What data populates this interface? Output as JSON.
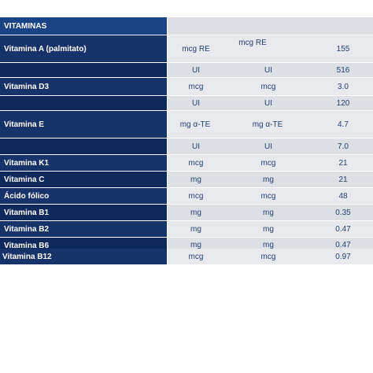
{
  "table": {
    "header": "VITAMINAS",
    "rows": [
      {
        "label": "Vitamina A (palmitato)",
        "c1": "mcg RE",
        "c2": "mcg RE",
        "c3": "155"
      },
      {
        "label": "",
        "c1": "UI",
        "c2": "UI",
        "c3": "516"
      },
      {
        "label": "Vitamina D3",
        "c1": "mcg",
        "c2": "mcg",
        "c3": "3.0"
      },
      {
        "label": "",
        "c1": "UI",
        "c2": "UI",
        "c3": "120"
      },
      {
        "label": "Vitamina E",
        "c1": "mg α-TE",
        "c2": "mg α-TE",
        "c3": "4.7"
      },
      {
        "label": "",
        "c1": "UI",
        "c2": "UI",
        "c3": "7.0"
      },
      {
        "label": "Vitamina K1",
        "c1": "mcg",
        "c2": "mcg",
        "c3": "21"
      },
      {
        "label": "Vitamina C",
        "c1": "mg",
        "c2": "mg",
        "c3": "21"
      },
      {
        "label": "Ácido fólico",
        "c1": "mcg",
        "c2": "mcg",
        "c3": "48"
      },
      {
        "label": "Vitamina B1",
        "c1": "mg",
        "c2": "mg",
        "c3": "0.35"
      },
      {
        "label": "Vitamina B2",
        "c1": "mg",
        "c2": "mg",
        "c3": "0.47"
      },
      {
        "label": "Vitamina B6",
        "c1": "mg",
        "c2": "mg",
        "c3": "0.47"
      },
      {
        "label": "Vitamina B12",
        "c1": "mcg",
        "c2": "mcg",
        "c3": "0.97"
      }
    ]
  },
  "colors": {
    "label_bg": "#17346a",
    "header_bg": "#1a4486",
    "cell_bg": "#e7e9ed",
    "cell_text": "#27406e"
  }
}
